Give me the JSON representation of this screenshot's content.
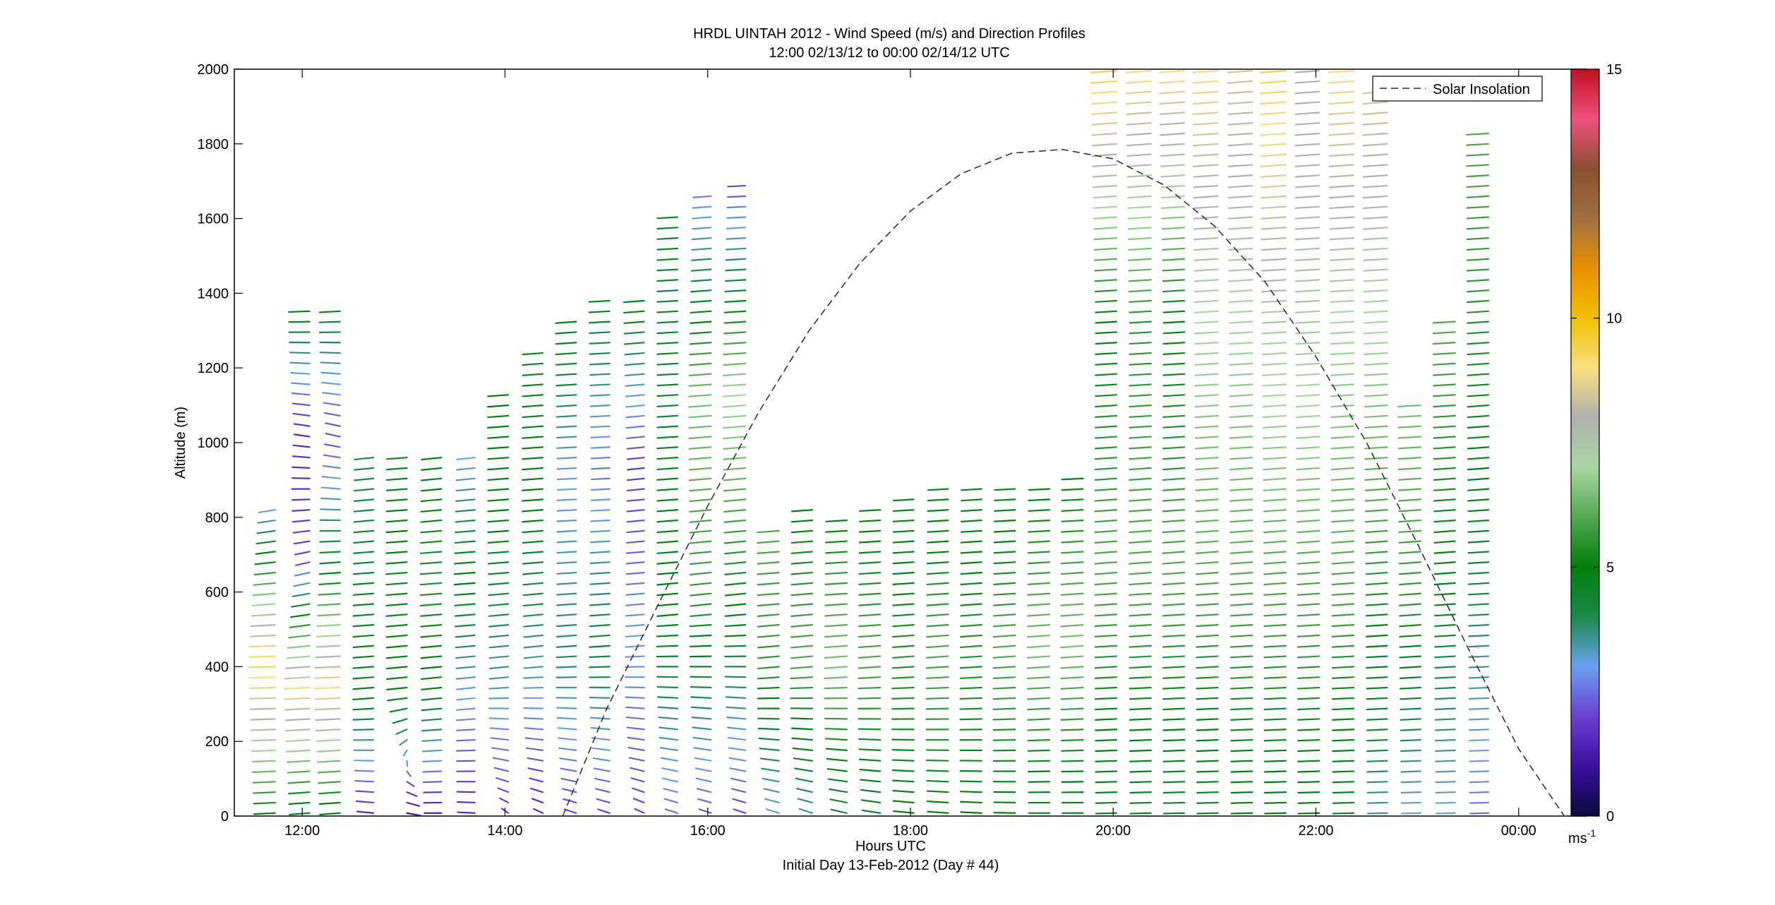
{
  "chart_data": {
    "type": "scatter",
    "title": "HRDL UINTAH 2012 - Wind Speed (m/s) and Direction Profiles",
    "subtitle": "12:00 02/13/12 to 00:00 02/14/12  UTC",
    "xlabel": "Hours UTC",
    "xlabel2": "Initial Day 13-Feb-2012 (Day # 44)",
    "ylabel": "Altitude (m)",
    "xlim": [
      11.33,
      24.67
    ],
    "ylim": [
      0,
      2000
    ],
    "x_ticks": [
      12,
      14,
      16,
      18,
      20,
      22,
      24
    ],
    "x_tick_labels": [
      "12:00",
      "14:00",
      "16:00",
      "18:00",
      "20:00",
      "22:00",
      "00:00"
    ],
    "y_ticks": [
      0,
      200,
      400,
      600,
      800,
      1000,
      1200,
      1400,
      1600,
      1800,
      2000
    ],
    "y_tick_labels": [
      "0",
      "200",
      "400",
      "600",
      "800",
      "1000",
      "1200",
      "1400",
      "1600",
      "1800",
      "2000"
    ],
    "legend": {
      "position": "top-right",
      "entries": [
        "Solar Insolation"
      ]
    },
    "colorbar": {
      "min": 0,
      "max": 15,
      "ticks": [
        0,
        5,
        10,
        15
      ],
      "tick_labels": [
        "0",
        "5",
        "10",
        "15"
      ],
      "unit_base": "ms",
      "unit_exp": "-1",
      "colors": [
        "#0a0a3a",
        "#3a10a0",
        "#6a40d0",
        "#6aa0f0",
        "#1a8a4a",
        "#00800a",
        "#52a850",
        "#a8d8a0",
        "#b0b0b0",
        "#f8e080",
        "#f0c000",
        "#e89000",
        "#a07040",
        "#8a5030",
        "#f05080",
        "#c01020"
      ]
    },
    "solar_insolation": {
      "style": "dashed",
      "color": "#333333",
      "x": [
        14.57,
        15.0,
        15.5,
        16.0,
        16.5,
        17.0,
        17.5,
        18.0,
        18.5,
        19.0,
        19.5,
        20.0,
        20.5,
        21.0,
        21.5,
        22.0,
        22.5,
        23.0,
        23.5,
        24.0,
        24.45
      ],
      "y": [
        0,
        285,
        560,
        830,
        1080,
        1300,
        1480,
        1620,
        1720,
        1775,
        1785,
        1760,
        1690,
        1580,
        1430,
        1230,
        1000,
        730,
        450,
        180,
        0
      ]
    },
    "wind_profiles": [
      {
        "t": 11.83,
        "z0": 0,
        "z1": 820,
        "speed": [
          5.0,
          9.5,
          3.0
        ],
        "dir": [
          260,
          265,
          240
        ]
      },
      {
        "t": 12.17,
        "z0": 0,
        "z1": 1370,
        "speed": [
          4.5,
          9.0,
          2.0,
          1.5,
          5.0
        ],
        "dir": [
          255,
          260,
          230,
          300,
          260
        ]
      },
      {
        "t": 12.47,
        "z0": 0,
        "z1": 1370,
        "speed": [
          4.5,
          9.0,
          4.5,
          2.0,
          4.8
        ],
        "dir": [
          255,
          262,
          255,
          310,
          255
        ]
      },
      {
        "t": 12.8,
        "z0": 0,
        "z1": 960,
        "speed": [
          1.5,
          4.8,
          4.5,
          4.0
        ],
        "dir": [
          290,
          255,
          255,
          250
        ]
      },
      {
        "t": 13.13,
        "z0": 0,
        "z1": 980,
        "speed": [
          1.0,
          5.0,
          5.2,
          4.5
        ],
        "dir": [
          120,
          250,
          255,
          255
        ]
      },
      {
        "t": 13.47,
        "z0": 0,
        "z1": 960,
        "speed": [
          1.2,
          4.8,
          5.5,
          4.8
        ],
        "dir": [
          270,
          250,
          255,
          250
        ]
      },
      {
        "t": 13.8,
        "z0": 0,
        "z1": 960,
        "speed": [
          1.5,
          3.0,
          5.0,
          3.0
        ],
        "dir": [
          280,
          250,
          255,
          250
        ]
      },
      {
        "t": 14.13,
        "z0": 0,
        "z1": 1140,
        "speed": [
          1.8,
          3.5,
          4.8,
          5.0
        ],
        "dir": [
          340,
          250,
          255,
          255
        ]
      },
      {
        "t": 14.47,
        "z0": 0,
        "z1": 1260,
        "speed": [
          1.5,
          3.5,
          5.0,
          4.5
        ],
        "dir": [
          330,
          250,
          255,
          255
        ]
      },
      {
        "t": 14.8,
        "z0": 0,
        "z1": 1340,
        "speed": [
          2.0,
          4.0,
          3.0,
          5.0
        ],
        "dir": [
          320,
          255,
          260,
          255
        ]
      },
      {
        "t": 15.13,
        "z0": 0,
        "z1": 1390,
        "speed": [
          2.0,
          4.5,
          2.5,
          4.8
        ],
        "dir": [
          320,
          255,
          260,
          258
        ]
      },
      {
        "t": 15.47,
        "z0": 0,
        "z1": 1400,
        "speed": [
          2.0,
          3.0,
          1.8,
          5.0
        ],
        "dir": [
          330,
          255,
          250,
          255
        ]
      },
      {
        "t": 15.8,
        "z0": 0,
        "z1": 1630,
        "speed": [
          2.5,
          5.0,
          4.5,
          4.5
        ],
        "dir": [
          320,
          252,
          258,
          258
        ]
      },
      {
        "t": 16.13,
        "z0": 0,
        "z1": 1680,
        "speed": [
          2.2,
          5.5,
          6.5,
          2.5
        ],
        "dir": [
          320,
          250,
          255,
          255
        ]
      },
      {
        "t": 16.47,
        "z0": 0,
        "z1": 1700,
        "speed": [
          2.0,
          5.0,
          7.0,
          2.0
        ],
        "dir": [
          320,
          250,
          255,
          260
        ]
      },
      {
        "t": 16.8,
        "z0": 0,
        "z1": 790,
        "speed": [
          3.0,
          5.5,
          6.0
        ],
        "dir": [
          320,
          252,
          255
        ]
      },
      {
        "t": 17.13,
        "z0": 0,
        "z1": 820,
        "speed": [
          3.5,
          6.0,
          5.0
        ],
        "dir": [
          320,
          252,
          255
        ]
      },
      {
        "t": 17.47,
        "z0": 0,
        "z1": 800,
        "speed": [
          4.0,
          6.5,
          5.0
        ],
        "dir": [
          310,
          255,
          258
        ]
      },
      {
        "t": 17.8,
        "z0": 0,
        "z1": 820,
        "speed": [
          4.5,
          6.0,
          4.8
        ],
        "dir": [
          300,
          255,
          258
        ]
      },
      {
        "t": 18.13,
        "z0": 0,
        "z1": 850,
        "speed": [
          5.0,
          5.5,
          4.5
        ],
        "dir": [
          290,
          255,
          258
        ]
      },
      {
        "t": 18.47,
        "z0": 0,
        "z1": 880,
        "speed": [
          5.0,
          6.0,
          4.5
        ],
        "dir": [
          285,
          255,
          258
        ]
      },
      {
        "t": 18.8,
        "z0": 0,
        "z1": 900,
        "speed": [
          5.0,
          5.5,
          4.5
        ],
        "dir": [
          280,
          255,
          258
        ]
      },
      {
        "t": 19.13,
        "z0": 0,
        "z1": 900,
        "speed": [
          4.8,
          6.0,
          4.5
        ],
        "dir": [
          275,
          255,
          260
        ]
      },
      {
        "t": 19.47,
        "z0": 0,
        "z1": 900,
        "speed": [
          4.5,
          6.5,
          4.8
        ],
        "dir": [
          270,
          255,
          260
        ]
      },
      {
        "t": 19.8,
        "z0": 0,
        "z1": 920,
        "speed": [
          4.5,
          6.5,
          5.0
        ],
        "dir": [
          270,
          255,
          260
        ]
      },
      {
        "t": 20.13,
        "z0": 0,
        "z1": 2000,
        "speed": [
          4.5,
          6.0,
          5.0,
          9.5
        ],
        "dir": [
          265,
          255,
          258,
          255
        ]
      },
      {
        "t": 20.47,
        "z0": 0,
        "z1": 2000,
        "speed": [
          4.5,
          6.0,
          5.5,
          9.0
        ],
        "dir": [
          265,
          255,
          258,
          255
        ]
      },
      {
        "t": 20.8,
        "z0": 0,
        "z1": 2000,
        "speed": [
          4.5,
          6.0,
          5.0,
          9.0
        ],
        "dir": [
          265,
          255,
          258,
          255
        ]
      },
      {
        "t": 21.13,
        "z0": 0,
        "z1": 2000,
        "speed": [
          4.5,
          6.0,
          7.0,
          9.0
        ],
        "dir": [
          265,
          255,
          258,
          255
        ]
      },
      {
        "t": 21.47,
        "z0": 0,
        "z1": 2000,
        "speed": [
          4.8,
          6.0,
          7.0,
          8.5
        ],
        "dir": [
          265,
          255,
          258,
          255
        ]
      },
      {
        "t": 21.8,
        "z0": 0,
        "z1": 2000,
        "speed": [
          4.8,
          6.0,
          7.5,
          9.5
        ],
        "dir": [
          265,
          255,
          258,
          255
        ]
      },
      {
        "t": 22.13,
        "z0": 0,
        "z1": 2000,
        "speed": [
          4.8,
          6.0,
          7.5,
          8.0
        ],
        "dir": [
          265,
          255,
          258,
          255
        ]
      },
      {
        "t": 22.47,
        "z0": 0,
        "z1": 2000,
        "speed": [
          4.5,
          6.0,
          7.0,
          9.0
        ],
        "dir": [
          265,
          255,
          258,
          255
        ]
      },
      {
        "t": 22.8,
        "z0": 0,
        "z1": 1950,
        "speed": [
          3.5,
          5.5,
          7.0,
          8.5
        ],
        "dir": [
          265,
          255,
          258,
          255
        ]
      },
      {
        "t": 23.13,
        "z0": 0,
        "z1": 1120,
        "speed": [
          3.0,
          5.5,
          6.5
        ],
        "dir": [
          265,
          255,
          258
        ]
      },
      {
        "t": 23.47,
        "z0": 0,
        "z1": 1340,
        "speed": [
          3.0,
          5.0,
          6.0
        ],
        "dir": [
          265,
          255,
          258
        ]
      },
      {
        "t": 23.8,
        "z0": 0,
        "z1": 1850,
        "speed": [
          2.5,
          5.0,
          6.0
        ],
        "dir": [
          265,
          255,
          258
        ]
      }
    ]
  }
}
